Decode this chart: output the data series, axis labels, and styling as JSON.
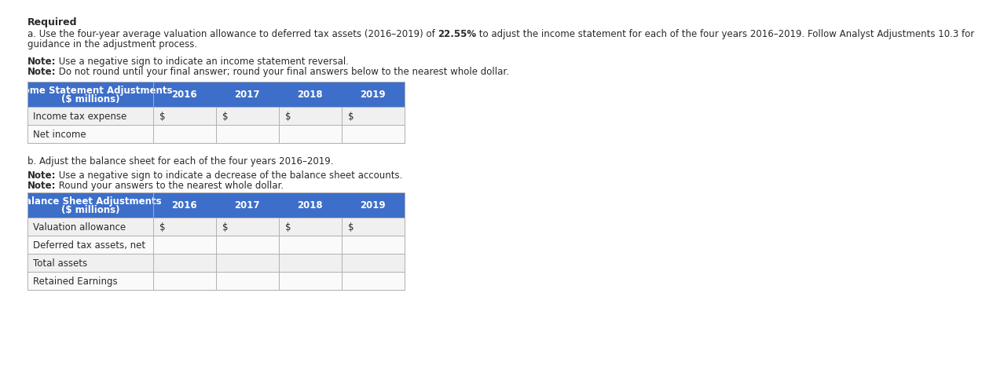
{
  "title": "Required",
  "para_a_before_bold": "a. Use the four-year average valuation allowance to deferred tax assets (2016–2019) of ",
  "para_a_bold": "22.55%",
  "para_a_after_bold": " to adjust the income statement for each of the four years 2016–2019. Follow Analyst Adjustments 10.3 for",
  "para_a_line2": "guidance in the adjustment process.",
  "note1_bold": "Note:",
  "note1_rest": " Use a negative sign to indicate an income statement reversal.",
  "note2_bold": "Note:",
  "note2_rest": " Do not round until your final answer; round your final answers below to the nearest whole dollar.",
  "para_b": "b. Adjust the balance sheet for each of the four years 2016–2019.",
  "note3_bold": "Note:",
  "note3_rest": " Use a negative sign to indicate a decrease of the balance sheet accounts.",
  "note4_bold": "Note:",
  "note4_rest": " Round your answers to the nearest whole dollar.",
  "table1_header_line1": "Income Statement Adjustments",
  "table1_header_line2": "($ millions)",
  "table1_years": [
    "2016",
    "2017",
    "2018",
    "2019"
  ],
  "table1_rows": [
    {
      "label": "Income tax expense",
      "vals": [
        "$",
        "$",
        "$",
        "$"
      ]
    },
    {
      "label": "Net income",
      "vals": [
        "",
        "",
        "",
        ""
      ]
    }
  ],
  "table2_header_line1": "Balance Sheet Adjustments",
  "table2_header_line2": "($ millions)",
  "table2_years": [
    "2016",
    "2017",
    "2018",
    "2019"
  ],
  "table2_rows": [
    {
      "label": "Valuation allowance",
      "vals": [
        "$",
        "$",
        "$",
        "$"
      ]
    },
    {
      "label": "Deferred tax assets, net",
      "vals": [
        "",
        "",
        "",
        ""
      ]
    },
    {
      "label": "Total assets",
      "vals": [
        "",
        "",
        "",
        ""
      ]
    },
    {
      "label": "Retained Earnings",
      "vals": [
        "",
        "",
        "",
        ""
      ]
    }
  ],
  "header_bg": "#3d6ec9",
  "header_fg": "#ffffff",
  "row_bg_even": "#f0f0f0",
  "row_bg_odd": "#fafafa",
  "border_color": "#b0b0b0",
  "text_color": "#2a2a2a",
  "font_size_body": 8.5,
  "font_size_table": 8.5
}
